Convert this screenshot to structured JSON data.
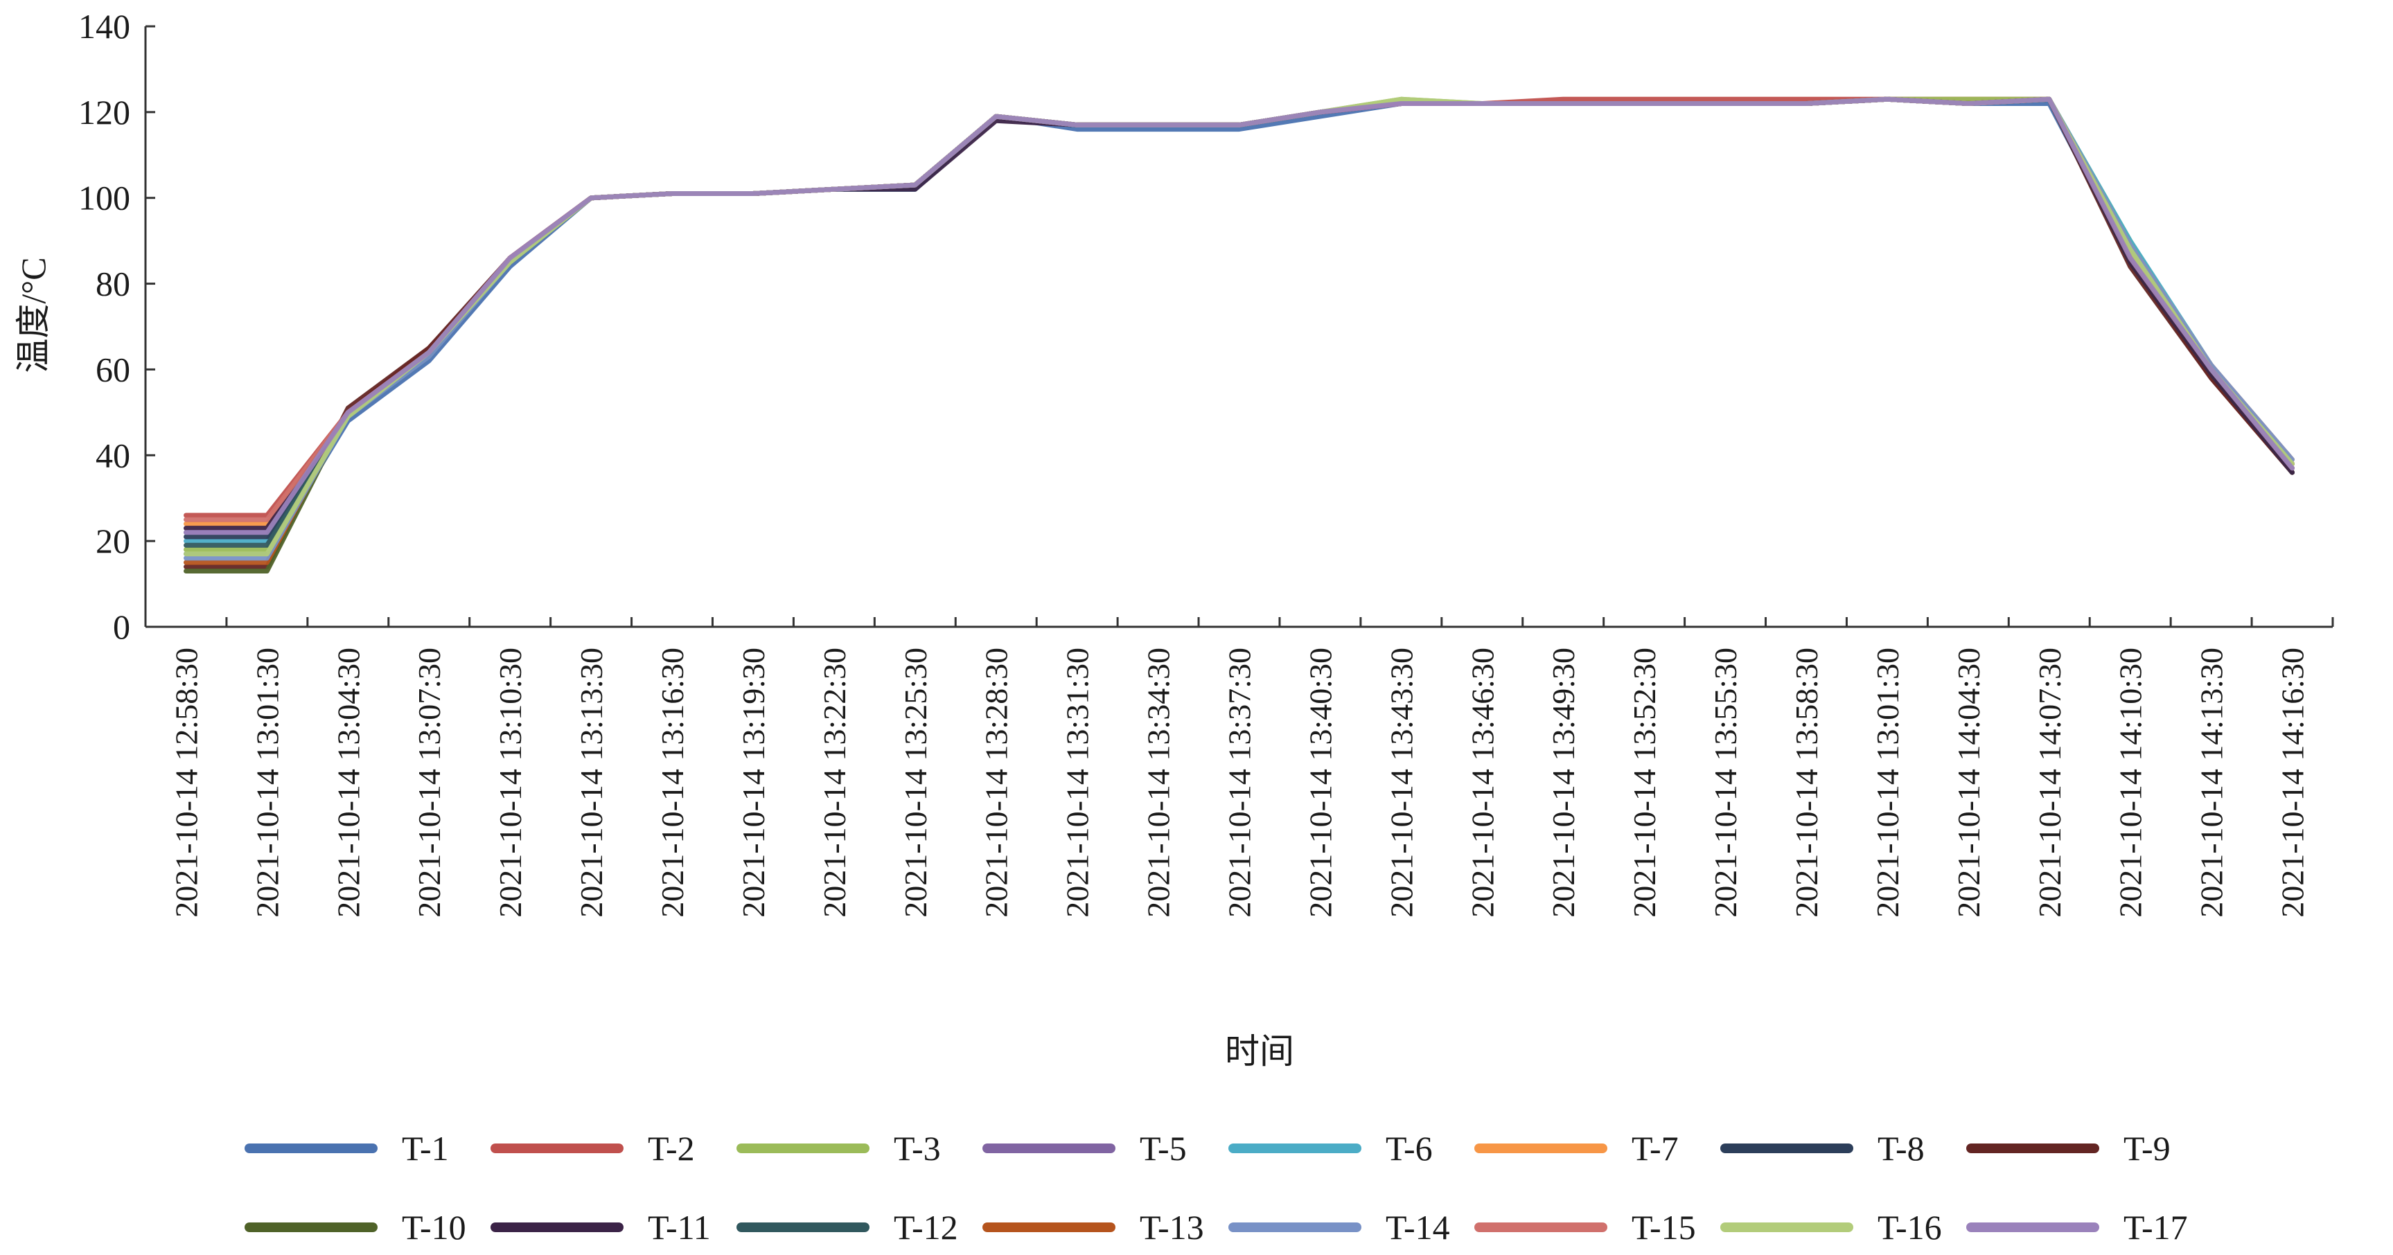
{
  "chart_data": {
    "type": "line",
    "title": "",
    "xlabel": "时间",
    "ylabel": "温度/°C",
    "ylim": [
      0,
      140
    ],
    "yticks": [
      0,
      20,
      40,
      60,
      80,
      100,
      120,
      140
    ],
    "grid": false,
    "legend_position": "bottom",
    "categories": [
      "2021-10-14 12:58:30",
      "2021-10-14 13:01:30",
      "2021-10-14 13:04:30",
      "2021-10-14 13:07:30",
      "2021-10-14 13:10:30",
      "2021-10-14 13:13:30",
      "2021-10-14 13:16:30",
      "2021-10-14 13:19:30",
      "2021-10-14 13:22:30",
      "2021-10-14 13:25:30",
      "2021-10-14 13:28:30",
      "2021-10-14 13:31:30",
      "2021-10-14 13:34:30",
      "2021-10-14 13:37:30",
      "2021-10-14 13:40:30",
      "2021-10-14 13:43:30",
      "2021-10-14 13:46:30",
      "2021-10-14 13:49:30",
      "2021-10-14 13:52:30",
      "2021-10-14 13:55:30",
      "2021-10-14 13:58:30",
      "2021-10-14 13:01:30",
      "2021-10-14 14:04:30",
      "2021-10-14 14:07:30",
      "2021-10-14 14:10:30",
      "2021-10-14 14:13:30",
      "2021-10-14 14:16:30"
    ],
    "series": [
      {
        "name": "T-1",
        "color": "#4a72b0",
        "values": [
          17,
          17,
          48,
          62,
          84,
          100,
          101,
          101,
          102,
          102,
          119,
          116,
          116,
          116,
          119,
          122,
          122,
          122,
          122,
          122,
          122,
          123,
          122,
          122,
          86,
          60,
          38
        ]
      },
      {
        "name": "T-2",
        "color": "#c0504d",
        "values": [
          26,
          26,
          50,
          65,
          85,
          100,
          101,
          101,
          102,
          103,
          119,
          117,
          117,
          117,
          120,
          122,
          122,
          123,
          123,
          123,
          123,
          123,
          123,
          123,
          85,
          58,
          36
        ]
      },
      {
        "name": "T-3",
        "color": "#9bbb59",
        "values": [
          18,
          18,
          50,
          64,
          85,
          100,
          101,
          101,
          102,
          103,
          119,
          117,
          117,
          117,
          120,
          123,
          122,
          122,
          122,
          122,
          122,
          123,
          123,
          123,
          90,
          60,
          38
        ]
      },
      {
        "name": "T-5",
        "color": "#8064a2",
        "values": [
          22,
          22,
          49,
          64,
          85,
          100,
          101,
          101,
          102,
          103,
          119,
          117,
          117,
          117,
          120,
          122,
          122,
          122,
          122,
          122,
          122,
          123,
          122,
          123,
          86,
          60,
          37
        ]
      },
      {
        "name": "T-6",
        "color": "#4bacc6",
        "values": [
          20,
          20,
          49,
          63,
          85,
          100,
          101,
          101,
          102,
          102,
          119,
          117,
          117,
          117,
          120,
          122,
          122,
          122,
          122,
          122,
          122,
          123,
          122,
          123,
          90,
          61,
          38
        ]
      },
      {
        "name": "T-7",
        "color": "#f79646",
        "values": [
          24,
          24,
          50,
          64,
          86,
          100,
          101,
          101,
          102,
          103,
          119,
          117,
          117,
          117,
          120,
          122,
          122,
          122,
          122,
          122,
          122,
          123,
          122,
          123,
          89,
          61,
          39
        ]
      },
      {
        "name": "T-8",
        "color": "#2c3e5a",
        "values": [
          21,
          21,
          50,
          64,
          85,
          100,
          101,
          101,
          102,
          103,
          119,
          117,
          117,
          117,
          120,
          122,
          122,
          122,
          122,
          122,
          122,
          123,
          122,
          123,
          85,
          59,
          36
        ]
      },
      {
        "name": "T-9",
        "color": "#632523",
        "values": [
          14,
          14,
          51,
          65,
          86,
          100,
          101,
          101,
          102,
          103,
          119,
          117,
          117,
          117,
          120,
          122,
          122,
          122,
          122,
          122,
          122,
          123,
          122,
          123,
          84,
          58,
          36
        ]
      },
      {
        "name": "T-10",
        "color": "#4f6228",
        "values": [
          13,
          13,
          50,
          64,
          85,
          100,
          101,
          101,
          102,
          103,
          119,
          117,
          117,
          117,
          120,
          122,
          122,
          122,
          122,
          122,
          122,
          123,
          122,
          123,
          85,
          59,
          36
        ]
      },
      {
        "name": "T-11",
        "color": "#3b2347",
        "values": [
          23,
          23,
          50,
          64,
          86,
          100,
          101,
          101,
          102,
          102,
          118,
          117,
          117,
          117,
          120,
          122,
          122,
          122,
          122,
          122,
          122,
          123,
          122,
          123,
          85,
          59,
          36
        ]
      },
      {
        "name": "T-12",
        "color": "#31585e",
        "values": [
          19,
          19,
          49,
          63,
          85,
          100,
          101,
          101,
          102,
          103,
          119,
          117,
          117,
          117,
          120,
          122,
          122,
          122,
          122,
          122,
          122,
          123,
          122,
          123,
          88,
          60,
          37
        ]
      },
      {
        "name": "T-13",
        "color": "#b5541d",
        "values": [
          15,
          15,
          50,
          64,
          86,
          100,
          101,
          101,
          102,
          103,
          119,
          117,
          117,
          117,
          120,
          122,
          122,
          122,
          122,
          122,
          122,
          123,
          122,
          123,
          86,
          60,
          38
        ]
      },
      {
        "name": "T-14",
        "color": "#7891c6",
        "values": [
          16,
          16,
          49,
          63,
          85,
          100,
          101,
          101,
          102,
          103,
          119,
          117,
          117,
          117,
          120,
          122,
          122,
          122,
          122,
          122,
          122,
          123,
          122,
          123,
          89,
          61,
          39
        ]
      },
      {
        "name": "T-15",
        "color": "#d0706c",
        "values": [
          25,
          25,
          50,
          64,
          86,
          100,
          101,
          101,
          102,
          103,
          119,
          117,
          117,
          117,
          120,
          122,
          122,
          122,
          122,
          122,
          122,
          123,
          122,
          123,
          87,
          60,
          37
        ]
      },
      {
        "name": "T-16",
        "color": "#b2cc7a",
        "values": [
          17,
          17,
          49,
          64,
          85,
          100,
          101,
          101,
          102,
          103,
          119,
          117,
          117,
          117,
          120,
          123,
          122,
          122,
          122,
          122,
          122,
          123,
          122,
          123,
          88,
          60,
          38
        ]
      },
      {
        "name": "T-17",
        "color": "#9a82bb",
        "values": [
          22,
          22,
          50,
          64,
          86,
          100,
          101,
          101,
          102,
          103,
          119,
          117,
          117,
          117,
          120,
          122,
          122,
          122,
          122,
          122,
          122,
          123,
          122,
          123,
          86,
          60,
          37
        ]
      }
    ]
  }
}
